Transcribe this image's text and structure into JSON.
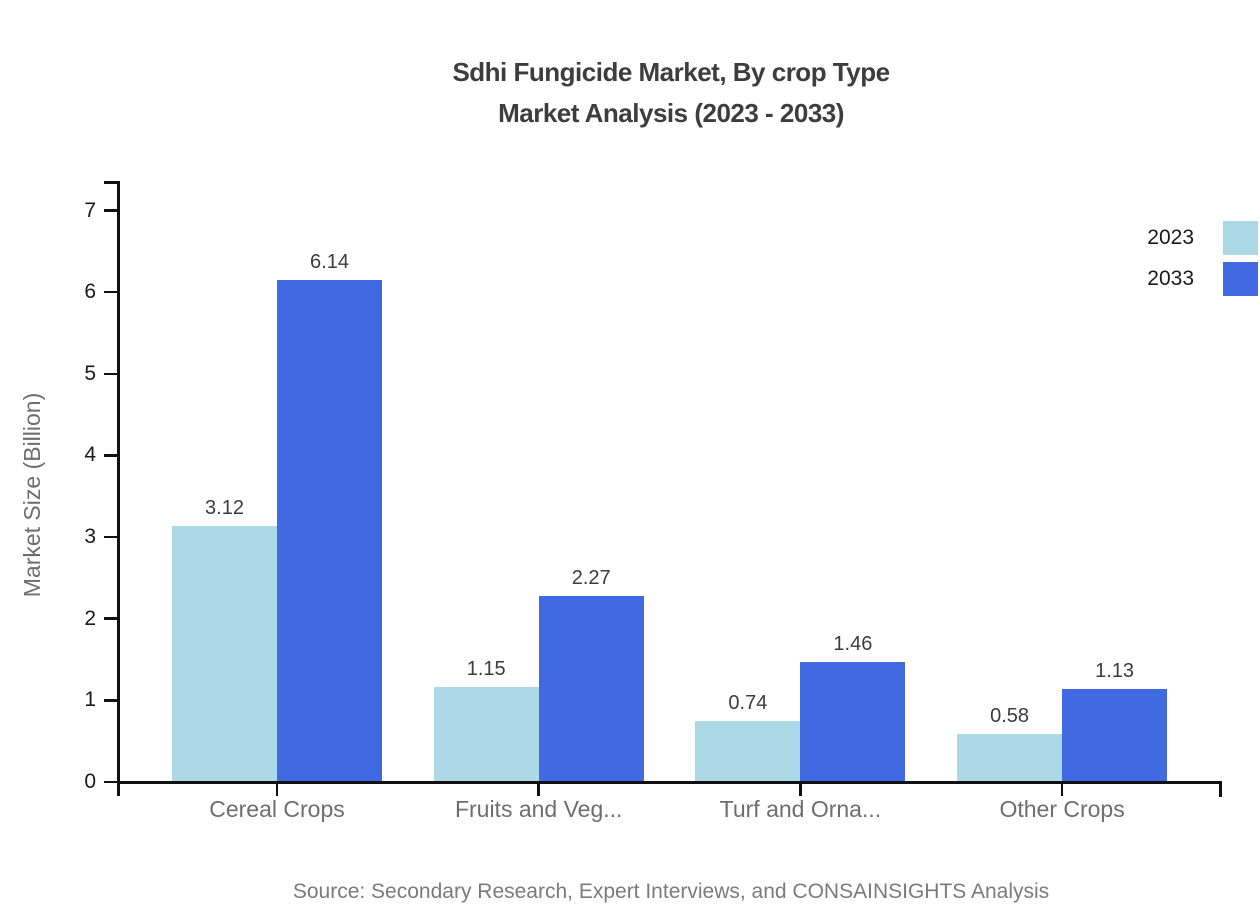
{
  "title": {
    "line1": "Sdhi Fungicide Market, By crop Type",
    "line2": "Market Analysis (2023 - 2033)"
  },
  "y_axis_title": "Market Size (Billion)",
  "source": "Source: Secondary Research, Expert Interviews, and CONSAINSIGHTS Analysis",
  "colors": {
    "series_2023": "#ADD8E6",
    "series_2033": "#4169E1",
    "axis": "#111111",
    "title_text": "#3d3d3d",
    "category_label": "#6e6e6e",
    "value_label": "#3c3c3c",
    "source_text": "#7b7b7b"
  },
  "legend": {
    "items": [
      {
        "label": "2023",
        "color": "#ADD8E6"
      },
      {
        "label": "2033",
        "color": "#4169E1"
      }
    ]
  },
  "chart_data": {
    "type": "bar",
    "title": "Sdhi Fungicide Market, By crop Type Market Analysis (2023 - 2033)",
    "xlabel": "",
    "ylabel": "Market Size (Billion)",
    "categories": [
      "Cereal Crops",
      "Fruits and Veg...",
      "Turf and Orna...",
      "Other Crops"
    ],
    "series": [
      {
        "name": "2023",
        "color": "#ADD8E6",
        "values": [
          3.12,
          1.15,
          0.74,
          0.58
        ]
      },
      {
        "name": "2033",
        "color": "#4169E1",
        "values": [
          6.14,
          2.27,
          1.46,
          1.13
        ]
      }
    ],
    "ylim": [
      0,
      7
    ],
    "yticks": [
      0,
      1,
      2,
      3,
      4,
      5,
      6,
      7
    ],
    "grid": false,
    "value_labels": true,
    "value_label_decimals": 2,
    "legend_position": "right"
  }
}
